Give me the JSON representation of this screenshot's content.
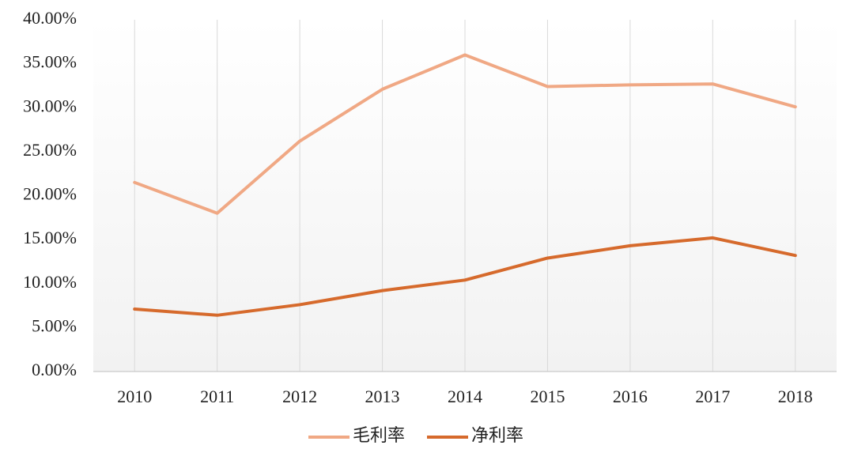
{
  "chart_data": {
    "type": "line",
    "categories": [
      "2010",
      "2011",
      "2012",
      "2013",
      "2014",
      "2015",
      "2016",
      "2017",
      "2018"
    ],
    "series": [
      {
        "name": "毛利率",
        "color": "#f0a884",
        "values": [
          21.5,
          18.0,
          26.2,
          32.1,
          36.0,
          32.4,
          32.6,
          32.7,
          30.1
        ]
      },
      {
        "name": "净利率",
        "color": "#d66a2c",
        "values": [
          7.1,
          6.4,
          7.6,
          9.2,
          10.4,
          12.9,
          14.3,
          15.2,
          13.2
        ]
      }
    ],
    "ylim": [
      0,
      40
    ],
    "yticks": [
      {
        "value": 0,
        "label": "0.00%"
      },
      {
        "value": 5,
        "label": "5.00%"
      },
      {
        "value": 10,
        "label": "10.00%"
      },
      {
        "value": 15,
        "label": "15.00%"
      },
      {
        "value": 20,
        "label": "20.00%"
      },
      {
        "value": 25,
        "label": "25.00%"
      },
      {
        "value": 30,
        "label": "30.00%"
      },
      {
        "value": 35,
        "label": "35.00%"
      },
      {
        "value": 40,
        "label": "40.00%"
      }
    ],
    "grid": true,
    "legend": "bottom"
  }
}
